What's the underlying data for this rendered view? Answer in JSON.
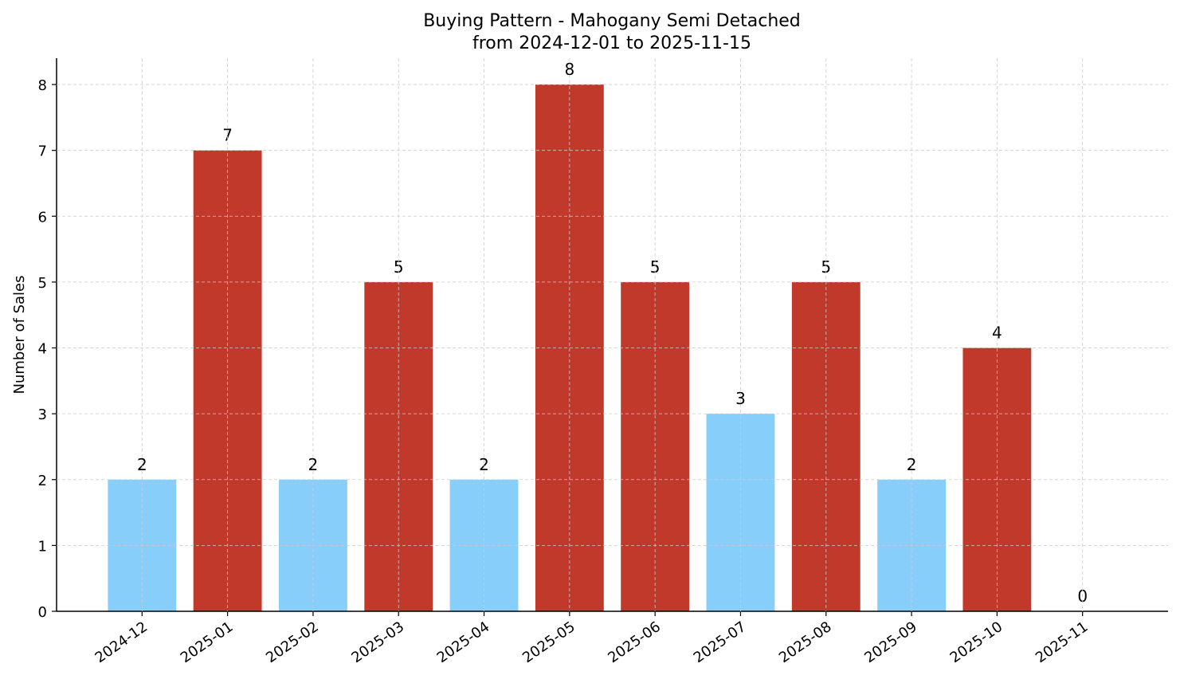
{
  "chart_data": {
    "type": "bar",
    "title": "Buying Pattern - Mahogany Semi Detached",
    "subtitle": "from 2024-12-01 to 2025-11-15",
    "xlabel": "",
    "ylabel": "Number of Sales",
    "categories": [
      "2024-12",
      "2025-01",
      "2025-02",
      "2025-03",
      "2025-04",
      "2025-05",
      "2025-06",
      "2025-07",
      "2025-08",
      "2025-09",
      "2025-10",
      "2025-11"
    ],
    "values": [
      2,
      7,
      2,
      5,
      2,
      8,
      5,
      3,
      5,
      2,
      4,
      0
    ],
    "ylim": [
      0,
      8.4
    ],
    "yticks": [
      0,
      1,
      2,
      3,
      4,
      5,
      6,
      7,
      8
    ],
    "grid": true,
    "colors": {
      "high": "#c0392b",
      "low": "#87cefa"
    },
    "high_threshold": 4
  }
}
